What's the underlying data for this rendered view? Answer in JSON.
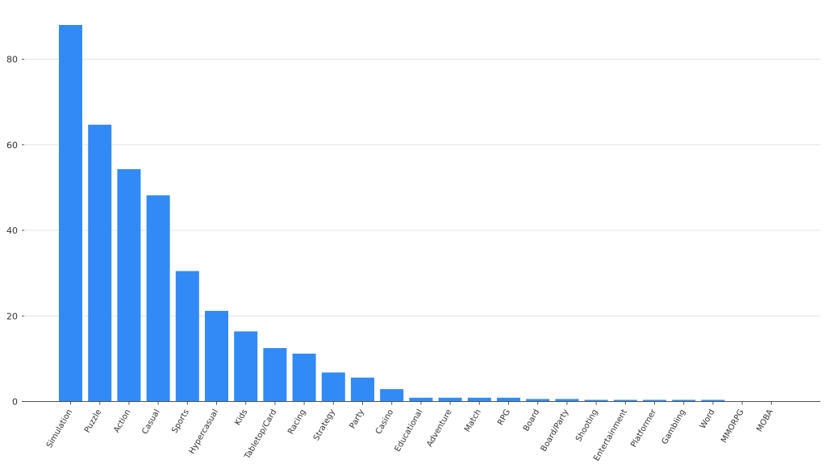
{
  "chart_data": {
    "type": "bar",
    "categories": [
      "Simulation",
      "Puzzle",
      "Action",
      "Casual",
      "Sports",
      "Hypercasual",
      "Kids",
      "Tabletop/Card",
      "Racing",
      "Strategy",
      "Party",
      "Casino",
      "Educational",
      "Adventure",
      "Match",
      "RPG",
      "Board",
      "Board/Party",
      "Shooting",
      "Entertainment",
      "Platformer",
      "Gambling",
      "Word",
      "MMORPG",
      "MOBA"
    ],
    "values": [
      88,
      64.7,
      54.3,
      48.2,
      30.5,
      21.2,
      16.4,
      12.5,
      11.2,
      6.8,
      5.6,
      2.9,
      0.9,
      0.9,
      0.9,
      0.9,
      0.6,
      0.6,
      0.4,
      0.4,
      0.4,
      0.4,
      0.4,
      0,
      0
    ],
    "yticks": [
      0,
      20,
      40,
      60,
      80
    ],
    "ylim": [
      0,
      90
    ],
    "grid": true,
    "colors": {
      "bar": "#318af5",
      "grid": "#e3e3e3",
      "axis": "#555555"
    }
  }
}
